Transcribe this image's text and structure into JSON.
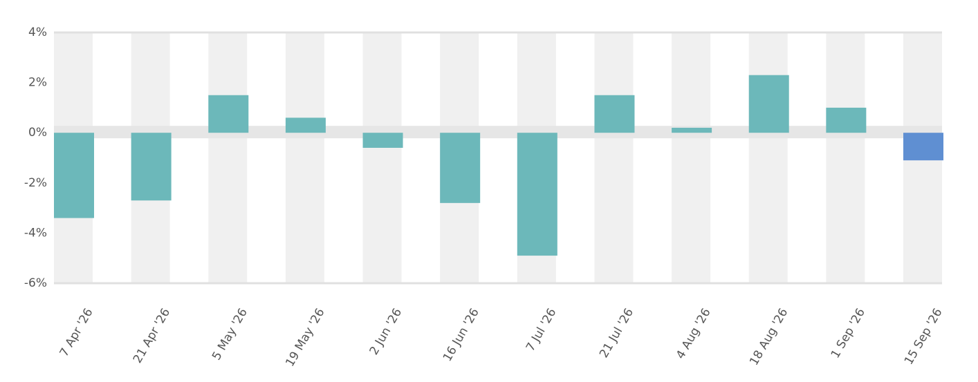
{
  "chart_data": {
    "type": "bar",
    "categories": [
      "7 Apr '26",
      "21 Apr '26",
      "5 May '26",
      "19 May '26",
      "2 Jun '26",
      "16 Jun '26",
      "7 Jul '26",
      "21 Jul '26",
      "4 Aug '26",
      "18 Aug '26",
      "1 Sep '26",
      "15 Sep '26"
    ],
    "values": [
      -3.4,
      -2.7,
      1.5,
      0.6,
      -0.6,
      -2.8,
      -4.9,
      1.5,
      0.2,
      2.3,
      1.0,
      -1.1
    ],
    "colors": [
      "#6cb8ba",
      "#6cb8ba",
      "#6cb8ba",
      "#6cb8ba",
      "#6cb8ba",
      "#6cb8ba",
      "#6cb8ba",
      "#6cb8ba",
      "#6cb8ba",
      "#6cb8ba",
      "#6cb8ba",
      "#5f8fd2"
    ],
    "ylim": [
      -6,
      4
    ],
    "yticks": [
      {
        "value": -6,
        "label": "-6%"
      },
      {
        "value": -4,
        "label": "-4%"
      },
      {
        "value": -2,
        "label": "-2%"
      },
      {
        "value": 0,
        "label": "0%"
      },
      {
        "value": 2,
        "label": "2%"
      },
      {
        "value": 4,
        "label": "4%"
      }
    ]
  }
}
